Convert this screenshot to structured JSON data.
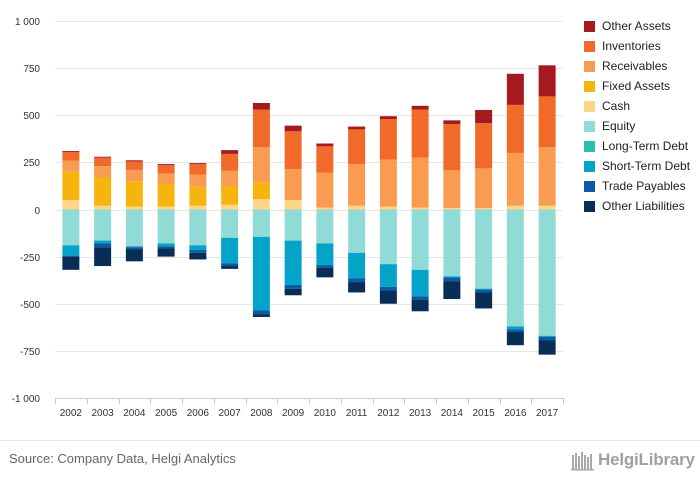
{
  "chart_data": {
    "type": "bar",
    "stacked": true,
    "categories": [
      "2002",
      "2003",
      "2004",
      "2005",
      "2006",
      "2007",
      "2008",
      "2009",
      "2010",
      "2011",
      "2012",
      "2013",
      "2014",
      "2015",
      "2016",
      "2017"
    ],
    "ylim": [
      -1000,
      1000
    ],
    "yticks": [
      -1000,
      -750,
      -500,
      -250,
      0,
      250,
      500,
      750,
      1000
    ],
    "ytick_labels": [
      "-1 000",
      "-750",
      "-500",
      "-250",
      "0",
      "250",
      "500",
      "750",
      "1 000"
    ],
    "grid": true,
    "legend_position": "right",
    "series": [
      {
        "name": "Other Assets",
        "color": "#a6191e",
        "side": "positive",
        "values": [
          5,
          5,
          6,
          6,
          6,
          20,
          35,
          30,
          15,
          15,
          15,
          20,
          20,
          70,
          165,
          165
        ]
      },
      {
        "name": "Inventories",
        "color": "#f26a2a",
        "side": "positive",
        "values": [
          45,
          45,
          45,
          45,
          55,
          90,
          200,
          200,
          140,
          185,
          215,
          255,
          245,
          240,
          255,
          270
        ]
      },
      {
        "name": "Receivables",
        "color": "#f99c52",
        "side": "positive",
        "values": [
          60,
          60,
          60,
          55,
          65,
          80,
          185,
          165,
          185,
          220,
          250,
          265,
          200,
          210,
          280,
          310
        ]
      },
      {
        "name": "Fixed Assets",
        "color": "#f6b40e",
        "side": "positive",
        "values": [
          150,
          150,
          135,
          120,
          100,
          100,
          90,
          0,
          0,
          0,
          0,
          0,
          0,
          0,
          0,
          0
        ]
      },
      {
        "name": "Cash",
        "color": "#fdd687",
        "side": "positive",
        "values": [
          50,
          20,
          15,
          15,
          20,
          25,
          55,
          50,
          10,
          20,
          15,
          10,
          8,
          8,
          20,
          20
        ]
      },
      {
        "name": "Equity",
        "color": "#90dbd5",
        "side": "negative",
        "values": [
          -190,
          -165,
          -195,
          -180,
          -190,
          -150,
          -145,
          -165,
          -180,
          -230,
          -290,
          -320,
          -355,
          -420,
          -620,
          -670
        ]
      },
      {
        "name": "Long-Term Debt",
        "color": "#2bbfad",
        "side": "negative",
        "values": [
          0,
          0,
          0,
          0,
          0,
          0,
          0,
          0,
          0,
          0,
          0,
          0,
          0,
          0,
          0,
          0
        ]
      },
      {
        "name": "Short-Term Debt",
        "color": "#04a4c8",
        "side": "negative",
        "values": [
          -55,
          -15,
          -5,
          -15,
          -25,
          -135,
          -390,
          -235,
          -115,
          -135,
          -120,
          -140,
          -5,
          -5,
          -15,
          -5
        ]
      },
      {
        "name": "Trade Payables",
        "color": "#0b5aa6",
        "side": "negative",
        "values": [
          -5,
          -20,
          -10,
          -10,
          -15,
          -15,
          -20,
          -20,
          -15,
          -20,
          -20,
          -20,
          -20,
          -15,
          -15,
          -20
        ]
      },
      {
        "name": "Other Liabilities",
        "color": "#082d56",
        "side": "negative",
        "values": [
          -70,
          -100,
          -65,
          -45,
          -35,
          -15,
          -15,
          -35,
          -50,
          -55,
          -70,
          -60,
          -95,
          -85,
          -70,
          -75
        ]
      }
    ],
    "legend_order": [
      "Other Assets",
      "Inventories",
      "Receivables",
      "Fixed Assets",
      "Cash",
      "Equity",
      "Long-Term Debt",
      "Short-Term Debt",
      "Trade Payables",
      "Other Liabilities"
    ]
  },
  "footer": {
    "source": "Source: Company Data, Helgi Analytics",
    "logo_text": "HelgiLibrary"
  },
  "colors": {
    "grid": "#e6e6e6",
    "axis": "#cccccc"
  }
}
